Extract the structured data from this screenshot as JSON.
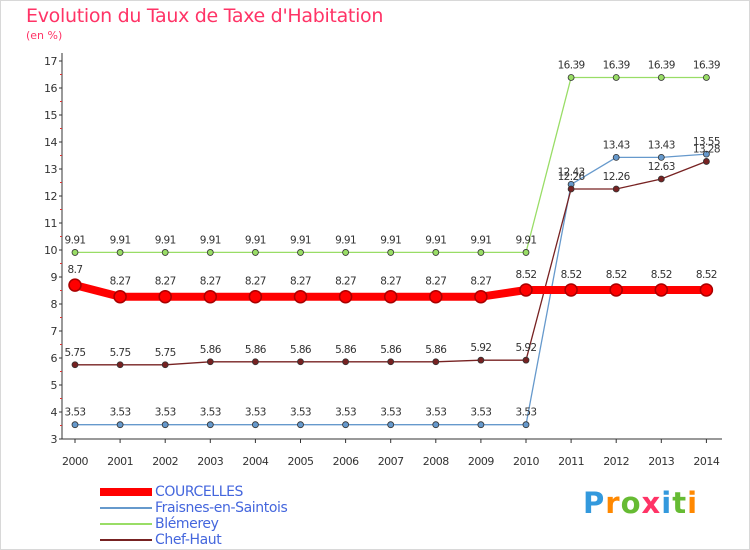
{
  "title": "Evolution du Taux de Taxe d'Habitation",
  "subtitle": "(en %)",
  "logo_text": "Proxiti",
  "chart_data": {
    "type": "line",
    "title": "Evolution du Taux de Taxe d'Habitation",
    "ylabel": "(en %)",
    "xlabel": "",
    "x": [
      "2000",
      "2001",
      "2002",
      "2003",
      "2004",
      "2005",
      "2006",
      "2007",
      "2008",
      "2009",
      "2010",
      "2011",
      "2012",
      "2013",
      "2014"
    ],
    "ylim": [
      3,
      17
    ],
    "yticks": [
      3,
      4,
      5,
      6,
      7,
      8,
      9,
      10,
      11,
      12,
      13,
      14,
      15,
      16,
      17
    ],
    "grid": false,
    "legend_position": "bottom-left",
    "series": [
      {
        "name": "COURCELLES",
        "color": "#ff0000",
        "values": [
          8.7,
          8.27,
          8.27,
          8.27,
          8.27,
          8.27,
          8.27,
          8.27,
          8.27,
          8.27,
          8.52,
          8.52,
          8.52,
          8.52,
          8.52
        ],
        "labels": [
          "8.7",
          "8.27",
          "8.27",
          "8.27",
          "8.27",
          "8.27",
          "8.27",
          "8.27",
          "8.27",
          "8.27",
          "8.52",
          "8.52",
          "8.52",
          "8.52",
          "8.52"
        ]
      },
      {
        "name": "Fraisnes-en-Saintois",
        "color": "#6699cc",
        "values": [
          3.53,
          3.53,
          3.53,
          3.53,
          3.53,
          3.53,
          3.53,
          3.53,
          3.53,
          3.53,
          3.53,
          12.43,
          13.43,
          13.43,
          13.55
        ],
        "labels": [
          "3.53",
          "3.53",
          "3.53",
          "3.53",
          "3.53",
          "3.53",
          "3.53",
          "3.53",
          "3.53",
          "3.53",
          "3.53",
          "12.43",
          "13.43",
          "13.43",
          "13.55"
        ]
      },
      {
        "name": "Blémerey",
        "color": "#99dd66",
        "values": [
          9.91,
          9.91,
          9.91,
          9.91,
          9.91,
          9.91,
          9.91,
          9.91,
          9.91,
          9.91,
          9.91,
          16.39,
          16.39,
          16.39,
          16.39
        ],
        "labels": [
          "9.91",
          "9.91",
          "9.91",
          "9.91",
          "9.91",
          "9.91",
          "9.91",
          "9.91",
          "9.91",
          "9.91",
          "9.91",
          "16.39",
          "16.39",
          "16.39",
          "16.39"
        ]
      },
      {
        "name": "Chef-Haut",
        "color": "#772222",
        "values": [
          5.75,
          5.75,
          5.75,
          5.86,
          5.86,
          5.86,
          5.86,
          5.86,
          5.86,
          5.92,
          5.92,
          12.26,
          12.26,
          12.63,
          13.28
        ],
        "labels": [
          "5.75",
          "5.75",
          "5.75",
          "5.86",
          "5.86",
          "5.86",
          "5.86",
          "5.86",
          "5.86",
          "5.92",
          "5.92",
          "12.26",
          "12.26",
          "12.63",
          "13.28"
        ]
      }
    ]
  }
}
